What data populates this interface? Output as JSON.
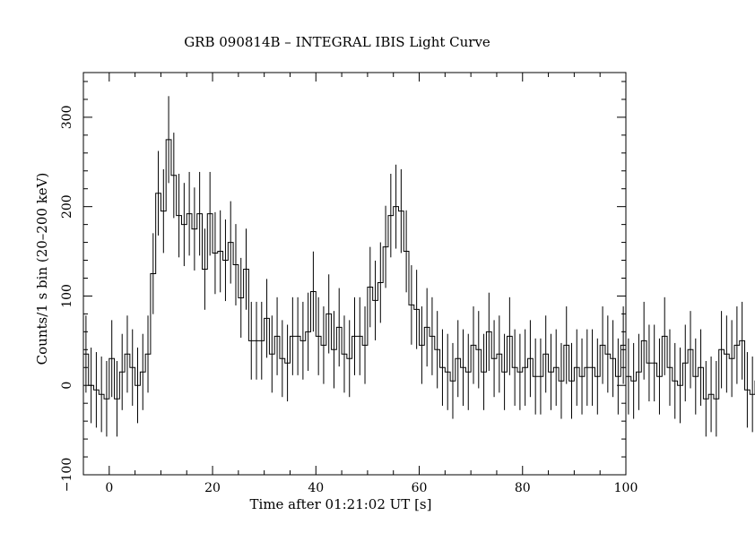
{
  "chart_data": {
    "type": "line",
    "title": "GRB 090814B – INTEGRAL IBIS Light Curve",
    "xlabel": "Time after 01:21:02 UT [s]",
    "ylabel": "Counts/1 s bin (20–200 keV)",
    "xlim": [
      -5,
      100
    ],
    "ylim": [
      -100,
      350
    ],
    "x_ticks": [
      0,
      20,
      40,
      60,
      80,
      100
    ],
    "x_tick_labels": [
      "0",
      "20",
      "40",
      "60",
      "80",
      "100"
    ],
    "y_ticks": [
      -100,
      0,
      100,
      200,
      300
    ],
    "y_tick_labels": [
      "−100",
      "0",
      "100",
      "200",
      "300"
    ],
    "grid": false,
    "style": "histogram step with error bars",
    "color": "#000000",
    "series": [
      {
        "bin_start": -5,
        "bin_width": 1,
        "values": [
          35,
          0,
          -5,
          -10,
          -15,
          30,
          -15,
          15,
          35,
          20,
          0,
          15,
          35,
          125,
          215,
          195,
          275,
          235,
          190,
          180,
          192,
          175,
          192,
          130,
          192,
          148,
          150,
          140,
          160,
          135,
          98,
          130,
          50,
          50,
          50,
          75,
          35,
          55,
          30,
          25,
          55,
          55,
          50,
          60,
          105,
          55,
          45,
          80,
          40,
          65,
          35,
          30,
          55,
          55,
          45,
          110,
          95,
          115,
          155,
          190,
          200,
          195,
          150,
          90,
          85,
          45,
          65,
          55,
          40,
          20,
          15,
          5,
          30,
          20,
          15,
          45,
          40,
          15,
          60,
          30,
          35,
          15,
          55,
          20,
          15,
          20,
          30,
          10,
          10,
          35,
          15,
          20,
          5,
          45,
          5,
          20,
          10,
          20,
          20,
          10,
          45,
          35,
          30,
          10,
          45,
          10,
          5,
          15,
          50,
          25,
          25,
          10,
          55,
          20,
          5,
          0,
          25,
          40,
          10,
          20,
          -15,
          -10,
          -15,
          40,
          35,
          30,
          45,
          50,
          -5,
          -10,
          5,
          10,
          30
        ]
      }
    ]
  }
}
